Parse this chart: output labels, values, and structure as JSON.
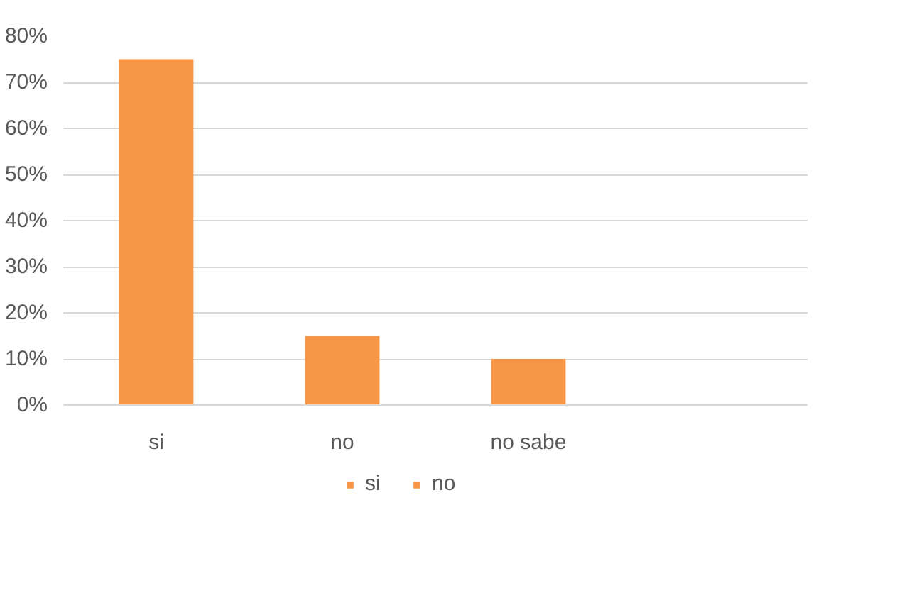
{
  "chart_data": {
    "type": "bar",
    "categories": [
      "si",
      "no",
      "no sabe",
      null
    ],
    "series": [
      {
        "name": "si",
        "color": "#f79646",
        "values": [
          75,
          15,
          10,
          null
        ]
      },
      {
        "name": "no",
        "color": "#f79646",
        "values": [
          null,
          null,
          null,
          null
        ]
      }
    ],
    "ylim": [
      0,
      80
    ],
    "yticks": [
      {
        "value": 0,
        "label": "0%"
      },
      {
        "value": 10,
        "label": "10%"
      },
      {
        "value": 20,
        "label": "20%"
      },
      {
        "value": 30,
        "label": "30%"
      },
      {
        "value": 40,
        "label": "40%"
      },
      {
        "value": 50,
        "label": "50%"
      },
      {
        "value": 60,
        "label": "60%"
      },
      {
        "value": 70,
        "label": "70%"
      },
      {
        "value": 80,
        "label": "80%"
      }
    ],
    "grid": "y",
    "legend": "bottom"
  }
}
